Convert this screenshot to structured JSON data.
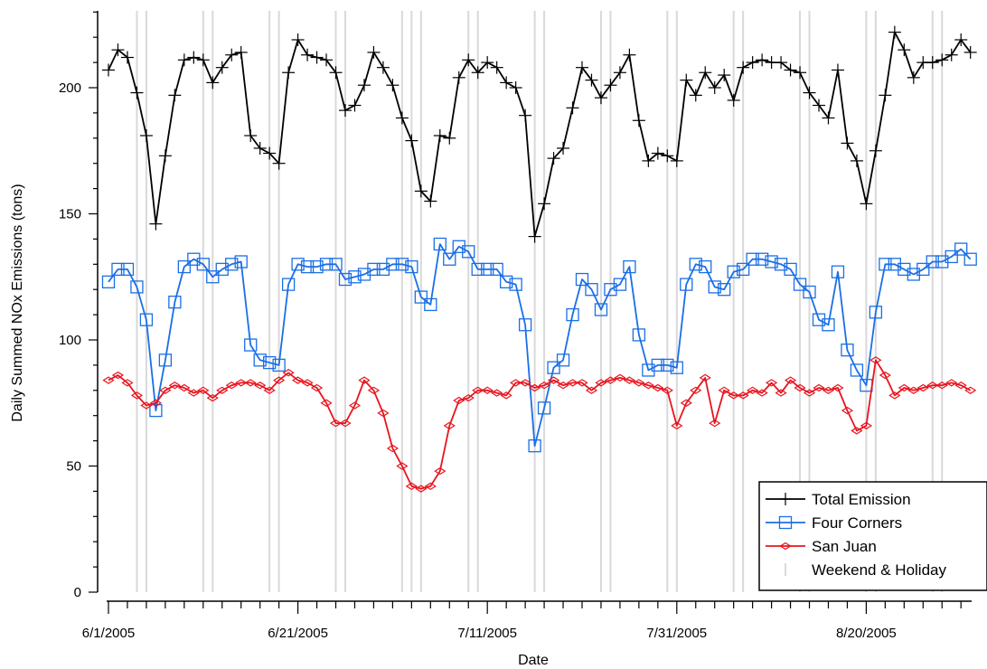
{
  "chart_data": {
    "type": "line",
    "xlabel": "Date",
    "ylabel": "Daily Summed NOx Emissions (tons)",
    "xlim": [
      0,
      91
    ],
    "ylim": [
      0,
      230
    ],
    "y_ticks": [
      0,
      50,
      100,
      150,
      200
    ],
    "x_ticks": [
      {
        "day": 0,
        "label": "6/1/2005"
      },
      {
        "day": 20,
        "label": "6/21/2005"
      },
      {
        "day": 40,
        "label": "7/11/2005"
      },
      {
        "day": 60,
        "label": "7/31/2005"
      },
      {
        "day": 80,
        "label": "8/20/2005"
      }
    ],
    "weekend_holiday_days": [
      3,
      4,
      10,
      11,
      17,
      18,
      24,
      25,
      31,
      32,
      33,
      38,
      39,
      45,
      46,
      52,
      53,
      59,
      60,
      66,
      67,
      73,
      74,
      80,
      81,
      87,
      88
    ],
    "series": [
      {
        "name": "Total Emission",
        "color": "#000000",
        "marker": "plus",
        "values": [
          207,
          215,
          212,
          198,
          181,
          146,
          173,
          197,
          211,
          212,
          211,
          202,
          208,
          213,
          214,
          181,
          176,
          174,
          170,
          206,
          219,
          213,
          212,
          211,
          206,
          191,
          193,
          201,
          214,
          208,
          201,
          188,
          179,
          159,
          155,
          181,
          180,
          204,
          211,
          206,
          210,
          208,
          202,
          200,
          189,
          141,
          154,
          172,
          176,
          192,
          208,
          203,
          196,
          201,
          206,
          213,
          187,
          171,
          174,
          173,
          171,
          203,
          197,
          206,
          200,
          205,
          195,
          208,
          210,
          211,
          210,
          210,
          207,
          206,
          198,
          193,
          188,
          207,
          178,
          171,
          154,
          175,
          197,
          222,
          215,
          204,
          210,
          210,
          211,
          213,
          219,
          214
        ]
      },
      {
        "name": "Four Corners",
        "color": "#1a6fe6",
        "marker": "square",
        "values": [
          123,
          128,
          128,
          121,
          108,
          72,
          92,
          115,
          129,
          132,
          130,
          125,
          128,
          130,
          131,
          98,
          92,
          91,
          90,
          122,
          130,
          129,
          129,
          130,
          130,
          124,
          125,
          126,
          128,
          128,
          130,
          130,
          129,
          117,
          114,
          138,
          132,
          137,
          135,
          128,
          128,
          128,
          123,
          122,
          106,
          58,
          73,
          89,
          92,
          110,
          124,
          120,
          112,
          120,
          122,
          129,
          102,
          88,
          90,
          90,
          89,
          122,
          130,
          129,
          121,
          120,
          127,
          128,
          132,
          132,
          131,
          130,
          128,
          122,
          119,
          108,
          106,
          127,
          96,
          88,
          82,
          111,
          130,
          130,
          128,
          126,
          128,
          131,
          131,
          133,
          136,
          132
        ]
      },
      {
        "name": "San Juan",
        "color": "#e8141e",
        "marker": "diamond",
        "values": [
          84,
          86,
          83,
          78,
          74,
          75,
          80,
          82,
          81,
          79,
          80,
          77,
          80,
          82,
          83,
          83,
          82,
          80,
          84,
          87,
          84,
          83,
          81,
          75,
          67,
          67,
          74,
          84,
          80,
          71,
          57,
          50,
          42,
          41,
          42,
          48,
          66,
          76,
          77,
          80,
          80,
          79,
          78,
          83,
          83,
          81,
          82,
          84,
          82,
          83,
          83,
          80,
          83,
          84,
          85,
          84,
          83,
          82,
          81,
          80,
          66,
          75,
          80,
          85,
          67,
          80,
          78,
          78,
          80,
          79,
          83,
          79,
          84,
          81,
          79,
          81,
          80,
          81,
          72,
          64,
          66,
          92,
          86,
          78,
          81,
          80,
          81,
          82,
          82,
          83,
          82,
          80
        ]
      },
      {
        "name": "Weekend & Holiday",
        "color": "#d9d9d9",
        "marker": "vline"
      }
    ]
  }
}
